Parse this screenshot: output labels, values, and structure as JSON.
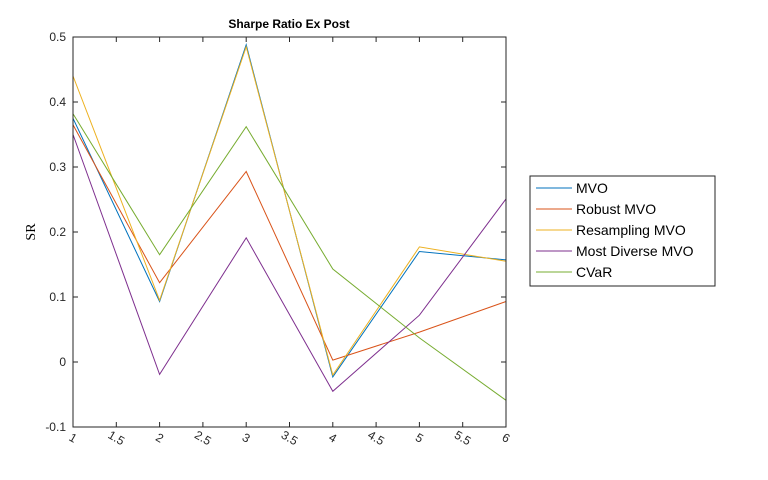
{
  "chart_data": {
    "type": "line",
    "title": "Sharpe Ratio Ex Post",
    "xlabel": "",
    "ylabel": "SR",
    "xlim": [
      1,
      6
    ],
    "ylim": [
      -0.1,
      0.5
    ],
    "x": [
      1,
      2,
      3,
      4,
      5,
      6
    ],
    "xticks": [
      "1",
      "1.5",
      "2",
      "2.5",
      "3",
      "3.5",
      "4",
      "4.5",
      "5",
      "5.5",
      "6"
    ],
    "yticks": [
      "-0.1",
      "0",
      "0.1",
      "0.2",
      "0.3",
      "0.4",
      "0.5"
    ],
    "grid": false,
    "legend_position": "outside-right",
    "series": [
      {
        "name": "MVO",
        "color": "#0072BD",
        "values": [
          0.375,
          0.093,
          0.488,
          -0.023,
          0.17,
          0.157
        ]
      },
      {
        "name": "Robust MVO",
        "color": "#D95319",
        "values": [
          0.365,
          0.122,
          0.293,
          0.003,
          0.046,
          0.093
        ]
      },
      {
        "name": "Resampling MVO",
        "color": "#EDB120",
        "values": [
          0.44,
          0.095,
          0.485,
          -0.02,
          0.177,
          0.155
        ]
      },
      {
        "name": "Most Diverse MVO",
        "color": "#7E2F8E",
        "values": [
          0.35,
          -0.019,
          0.191,
          -0.045,
          0.072,
          0.251
        ]
      },
      {
        "name": "CVaR",
        "color": "#77AC30",
        "values": [
          0.382,
          0.165,
          0.362,
          0.143,
          0.037,
          -0.059
        ]
      }
    ]
  }
}
